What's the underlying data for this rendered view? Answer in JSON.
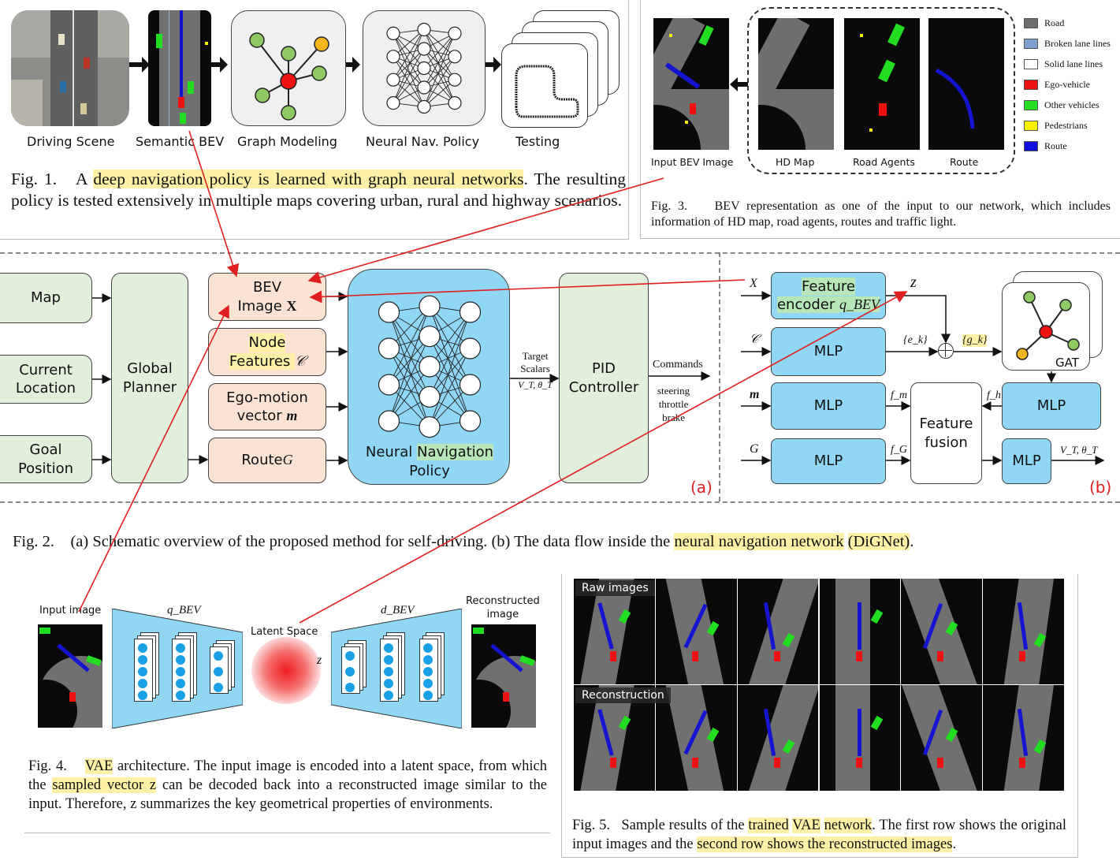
{
  "fig1": {
    "stages": [
      "Driving Scene",
      "Semantic BEV",
      "Graph Modeling",
      "Neural Nav. Policy",
      "Testing"
    ],
    "caption_label": "Fig. 1.",
    "caption_pre": "A ",
    "caption_highlight": "deep navigation policy is learned with graph neural networks",
    "caption_post": ". The resulting policy is tested extensively in multiple maps covering urban, rural and highway scenarios."
  },
  "fig3": {
    "panels": [
      "Input BEV Image",
      "HD Map",
      "Road Agents",
      "Route"
    ],
    "legend": [
      {
        "label": "Road",
        "color": "#6e6e6e"
      },
      {
        "label": "Broken lane lines",
        "color": "#7f9fcf"
      },
      {
        "label": "Solid lane lines",
        "color": "#ffffff"
      },
      {
        "label": "Ego-vehicle",
        "color": "#ee1111"
      },
      {
        "label": "Other vehicles",
        "color": "#22dd22"
      },
      {
        "label": "Pedestrians",
        "color": "#f4f000"
      },
      {
        "label": "Route",
        "color": "#1111dd"
      }
    ],
    "caption_label": "Fig. 3.",
    "caption": "BEV representation as one of the input to our network, which includes information of HD map, road agents, routes and traffic light."
  },
  "fig2": {
    "inputs": {
      "map": "Map",
      "current_1": "Current",
      "current_2": "Location",
      "goal_1": "Goal",
      "goal_2": "Position"
    },
    "planner_1": "Global",
    "planner_2": "Planner",
    "bev_1": "BEV",
    "bev_2": "Image ",
    "bev_x": "X",
    "node_1": "Node",
    "node_2": "Features ",
    "node_c": "𝒞",
    "ego_1": "Ego-motion",
    "ego_2": "vector ",
    "ego_m": "m",
    "route": "Route ",
    "route_g": "G",
    "policy_1": "Neural ",
    "policy_hl": "Navigation",
    "policy_2": "Policy",
    "target_1": "Target",
    "target_2": "Scalars",
    "target_vars": "V_T, θ_T",
    "pid_1": "PID",
    "pid_2": "Controller",
    "commands": "Commands",
    "cmd_list": [
      "steering",
      "throttle",
      "brake"
    ],
    "label_a": "(a)",
    "b": {
      "x_in": "X",
      "c_in": "𝒞",
      "m_in": "m",
      "g_in": "G",
      "enc_1": "Feature",
      "enc_2": "encoder ",
      "enc_q": "q_BEV",
      "z": "z",
      "mlp": "MLP",
      "ek": "{e_k}",
      "gk": "{g_k}",
      "gat": "GAT",
      "fm": "f_m",
      "fg": "f_G",
      "fh": "f_h",
      "fusion_1": "Feature",
      "fusion_2": "fusion",
      "out": "V_T, θ_T",
      "label_b": "(b)"
    },
    "caption_label": "Fig. 2.",
    "caption_pre": "(a) Schematic overview of the proposed method for self-driving. (b) The data flow inside the ",
    "caption_hl1": "neural navigation network",
    "caption_hl2": "(DiGNet)",
    "caption_post": "."
  },
  "fig4": {
    "input_label": "Input image",
    "q": "q_BEV",
    "latent": "Latent Space",
    "z": "z",
    "d": "d_BEV",
    "recon_1": "Reconstructed",
    "recon_2": "image",
    "caption_label": "Fig. 4.",
    "caption_hl1": "VAE",
    "caption_1": " architecture. The input image is encoded into a latent space, from which the ",
    "caption_hl2": "sampled vector z",
    "caption_2": " can be decoded back into a reconstructed image similar to the input. Therefore, z summarizes the key geometrical properties of environments."
  },
  "fig5": {
    "row1": "Raw images",
    "row2": "Reconstruction",
    "caption_label": "Fig. 5.",
    "caption_pre": "Sample results of the ",
    "caption_hl1": "trained",
    "caption_hl2": "VAE",
    "caption_hl3": "network",
    "caption_mid": ". The first row shows the original input images and the ",
    "caption_hl4": "second row shows the reconstructed images",
    "caption_post": "."
  }
}
